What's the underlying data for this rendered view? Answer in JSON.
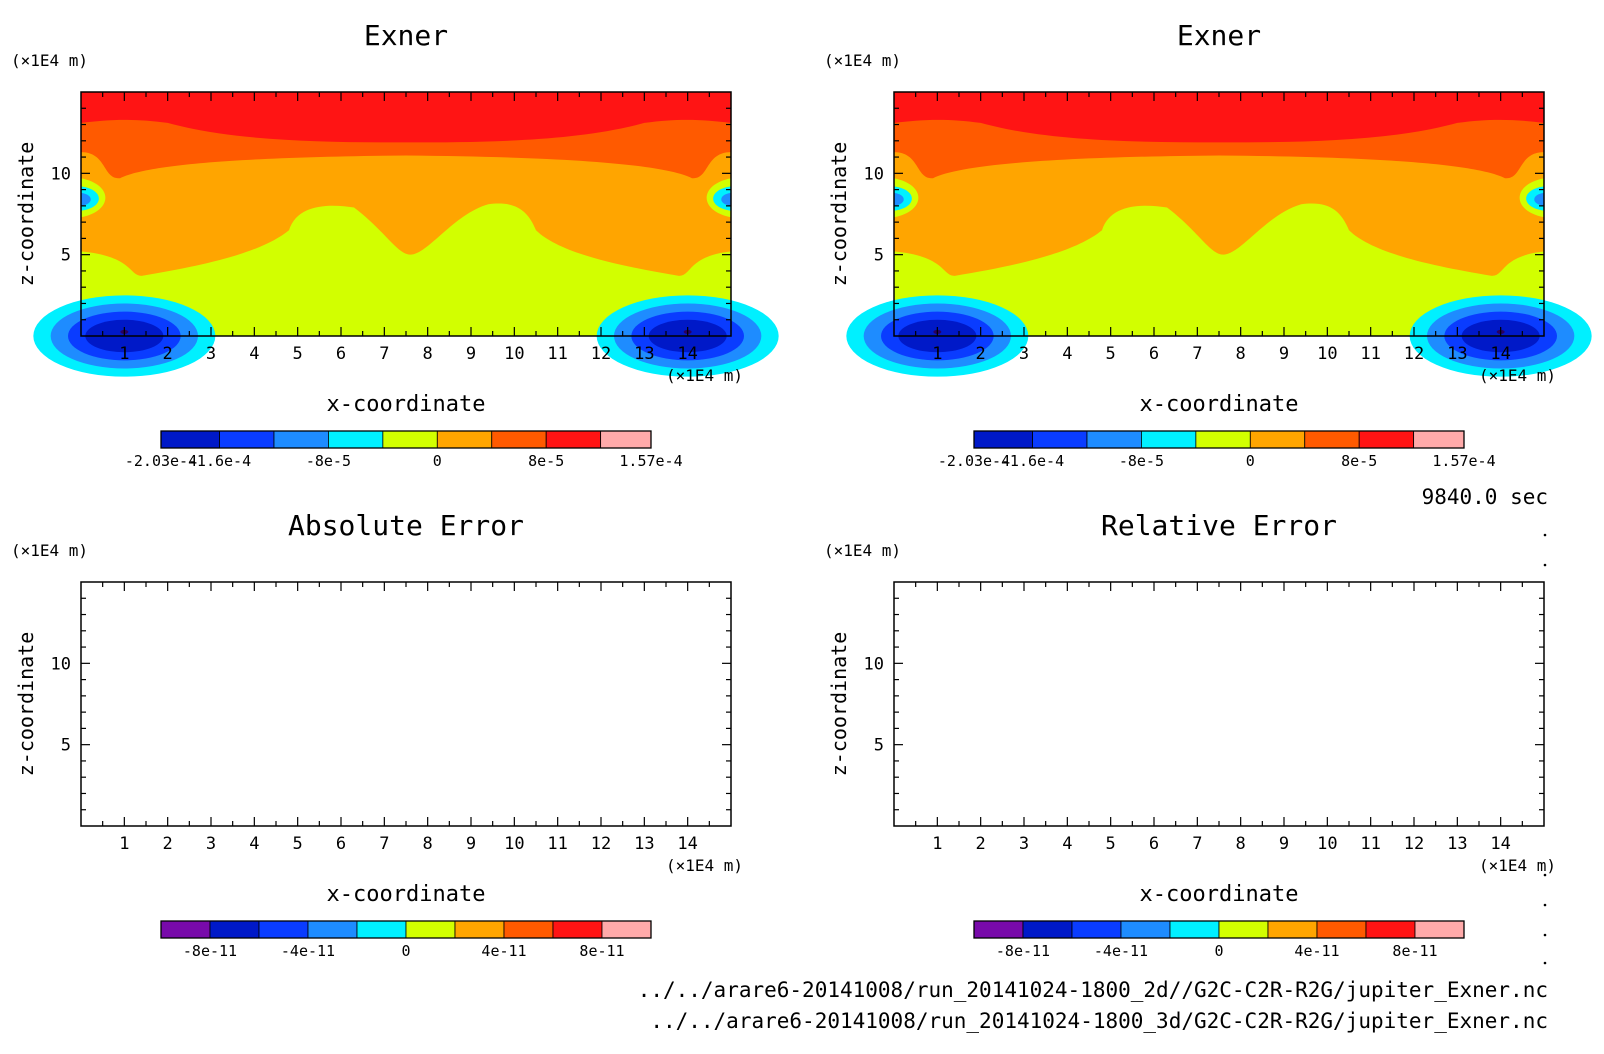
{
  "time_label": "9840.0 sec",
  "file_paths": [
    "../../arare6-20141008/run_20141024-1800_2d//G2C-C2R-R2G/jupiter_Exner.nc",
    "../../arare6-20141008/run_20141024-1800_3d/G2C-C2R-R2G/jupiter_Exner.nc"
  ],
  "chart_data": [
    {
      "type": "heatmap",
      "title": "Exner",
      "xlabel": "x-coordinate",
      "ylabel": "z-coordinate",
      "x_unit": "(×1E4 m)",
      "y_unit": "(×1E4 m)",
      "xlim": [
        0,
        15
      ],
      "ylim": [
        0,
        15
      ],
      "x_ticks": [
        1,
        2,
        3,
        4,
        5,
        6,
        7,
        8,
        9,
        10,
        11,
        12,
        13,
        14
      ],
      "y_ticks": [
        5,
        10
      ],
      "filled": true,
      "colorbar": {
        "levels": [
          -0.000203,
          -0.00016,
          -0.00012,
          -8e-05,
          -4e-05,
          0,
          4e-05,
          8e-05,
          0.00012,
          0.000157
        ],
        "colors": [
          "#0019c8",
          "#0a3cff",
          "#1e8cff",
          "#00f0ff",
          "#d2ff00",
          "#ffa500",
          "#ff5a00",
          "#ff1414",
          "#ffaaaa"
        ],
        "labels": [
          "-2.03e-4",
          "-1.6e-4",
          "-8e-5",
          "0",
          "8e-5",
          "1.57e-4"
        ]
      }
    },
    {
      "type": "heatmap",
      "title": "Exner",
      "xlabel": "x-coordinate",
      "ylabel": "z-coordinate",
      "x_unit": "(×1E4 m)",
      "y_unit": "(×1E4 m)",
      "xlim": [
        0,
        15
      ],
      "ylim": [
        0,
        15
      ],
      "x_ticks": [
        1,
        2,
        3,
        4,
        5,
        6,
        7,
        8,
        9,
        10,
        11,
        12,
        13,
        14
      ],
      "y_ticks": [
        5,
        10
      ],
      "filled": true,
      "colorbar": {
        "levels": [
          -0.000203,
          -0.00016,
          -0.00012,
          -8e-05,
          -4e-05,
          0,
          4e-05,
          8e-05,
          0.00012,
          0.000157
        ],
        "colors": [
          "#0019c8",
          "#0a3cff",
          "#1e8cff",
          "#00f0ff",
          "#d2ff00",
          "#ffa500",
          "#ff5a00",
          "#ff1414",
          "#ffaaaa"
        ],
        "labels": [
          "-2.03e-4",
          "-1.6e-4",
          "-8e-5",
          "0",
          "8e-5",
          "1.57e-4"
        ]
      }
    },
    {
      "type": "heatmap",
      "title": "Absolute Error",
      "xlabel": "x-coordinate",
      "ylabel": "z-coordinate",
      "x_unit": "(×1E4 m)",
      "y_unit": "(×1E4 m)",
      "xlim": [
        0,
        15
      ],
      "ylim": [
        0,
        15
      ],
      "x_ticks": [
        1,
        2,
        3,
        4,
        5,
        6,
        7,
        8,
        9,
        10,
        11,
        12,
        13,
        14
      ],
      "y_ticks": [
        5,
        10
      ],
      "filled": false,
      "colorbar": {
        "levels": [
          -1e-10,
          -8e-11,
          -6e-11,
          -4e-11,
          -2e-11,
          0,
          2e-11,
          4e-11,
          6e-11,
          8e-11,
          1e-10
        ],
        "colors": [
          "#780aaa",
          "#0019c8",
          "#0a3cff",
          "#1e8cff",
          "#00f0ff",
          "#d2ff00",
          "#ffa500",
          "#ff5a00",
          "#ff1414",
          "#ffaaaa"
        ],
        "labels": [
          "-8e-11",
          "-4e-11",
          "0",
          "4e-11",
          "8e-11"
        ]
      }
    },
    {
      "type": "heatmap",
      "title": "Relative Error",
      "xlabel": "x-coordinate",
      "ylabel": "z-coordinate",
      "x_unit": "(×1E4 m)",
      "y_unit": "(×1E4 m)",
      "xlim": [
        0,
        15
      ],
      "ylim": [
        0,
        15
      ],
      "x_ticks": [
        1,
        2,
        3,
        4,
        5,
        6,
        7,
        8,
        9,
        10,
        11,
        12,
        13,
        14
      ],
      "y_ticks": [
        5,
        10
      ],
      "filled": false,
      "colorbar": {
        "levels": [
          -1e-10,
          -8e-11,
          -6e-11,
          -4e-11,
          -2e-11,
          0,
          2e-11,
          4e-11,
          6e-11,
          8e-11,
          1e-10
        ],
        "colors": [
          "#780aaa",
          "#0019c8",
          "#0a3cff",
          "#1e8cff",
          "#00f0ff",
          "#d2ff00",
          "#ffa500",
          "#ff5a00",
          "#ff1414",
          "#ffaaaa"
        ],
        "labels": [
          "-8e-11",
          "-4e-11",
          "0",
          "4e-11",
          "8e-11"
        ]
      }
    }
  ]
}
